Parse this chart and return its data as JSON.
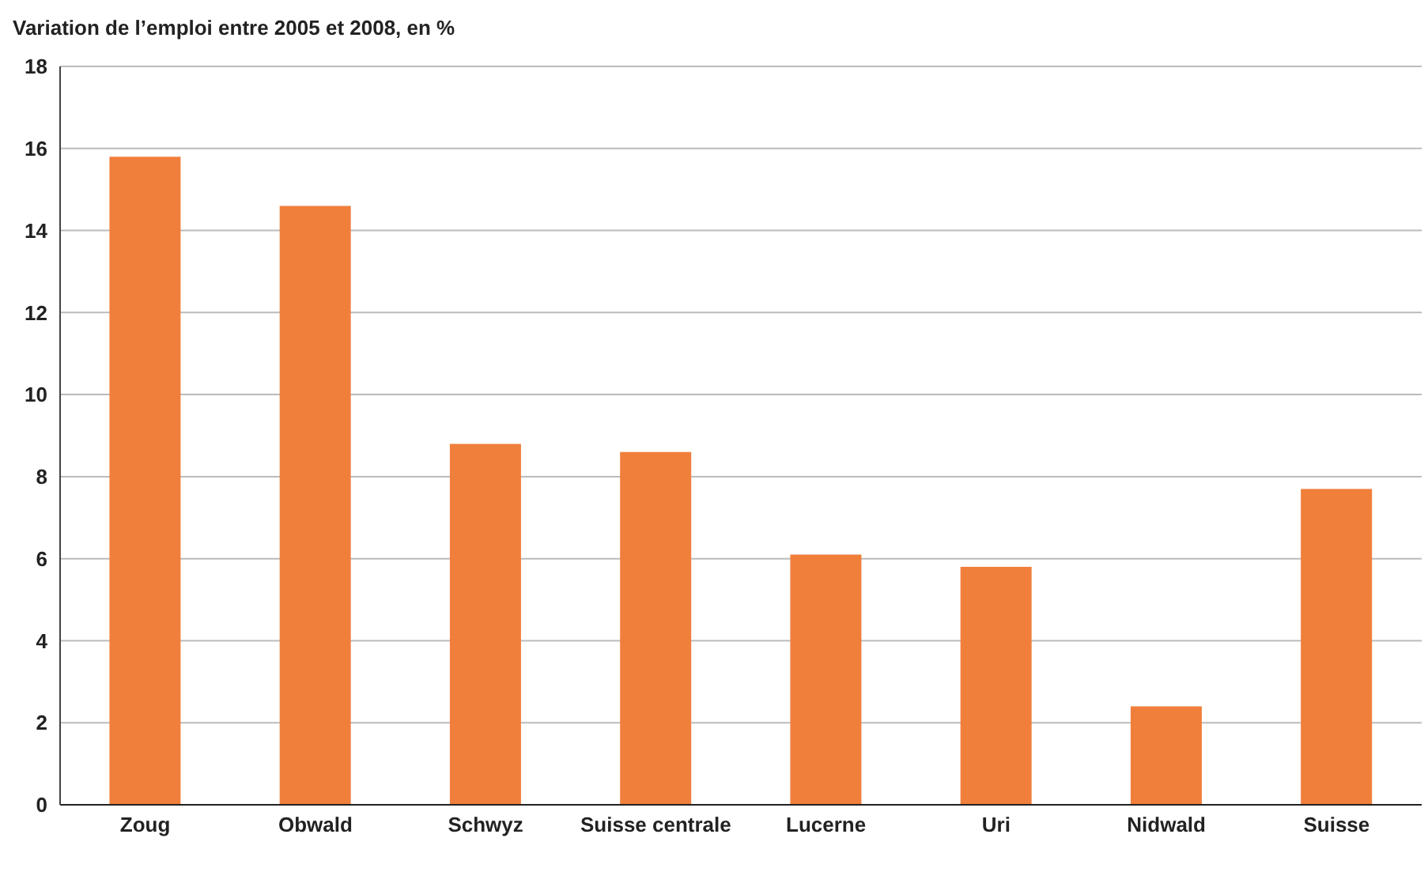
{
  "chart_data": {
    "type": "bar",
    "title": "Variation de l’emploi entre 2005 et 2008, en %",
    "categories": [
      "Zoug",
      "Obwald",
      "Schwyz",
      "Suisse centrale",
      "Lucerne",
      "Uri",
      "Nidwald",
      "Suisse"
    ],
    "values": [
      15.8,
      14.6,
      8.8,
      8.6,
      6.1,
      5.8,
      2.4,
      7.7
    ],
    "color": "#f07f3c",
    "ylim": [
      0,
      18
    ],
    "yticks": [
      0,
      2,
      4,
      6,
      8,
      10,
      12,
      14,
      16,
      18
    ],
    "grid": "y"
  }
}
